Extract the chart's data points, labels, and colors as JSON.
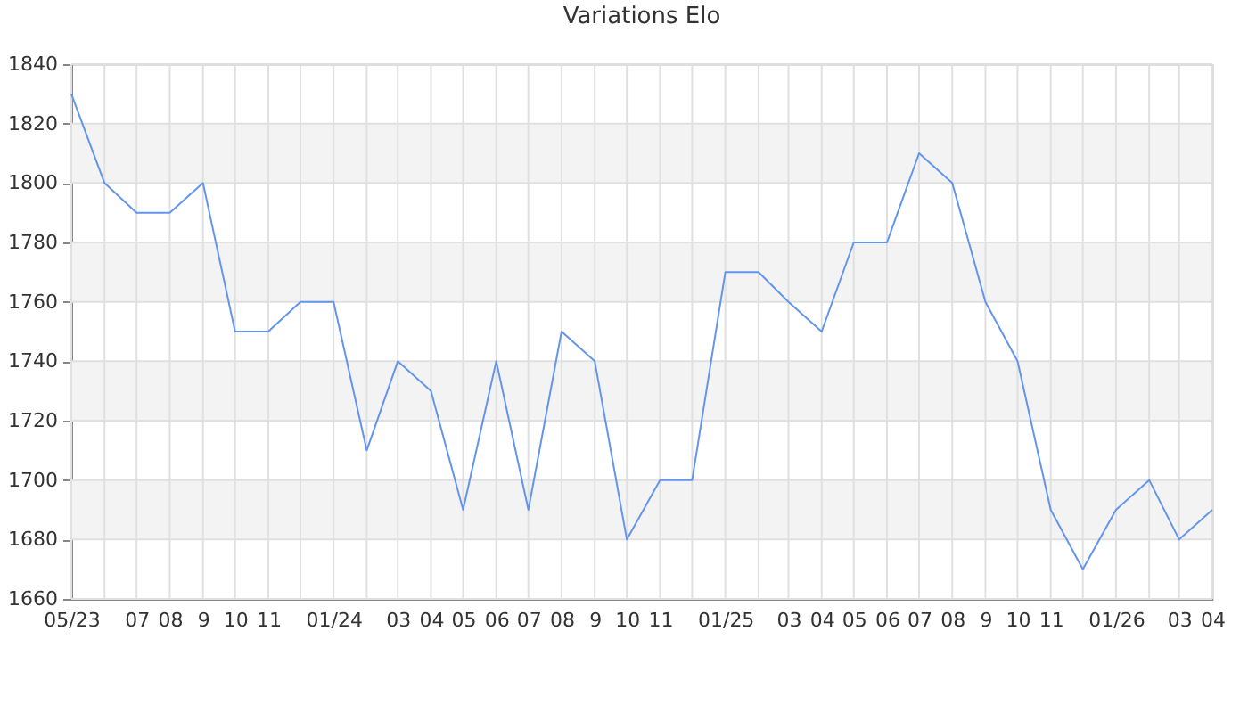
{
  "chart_data": {
    "type": "line",
    "title": "Variations Elo",
    "x": [
      "2023-05",
      "2023-06",
      "2023-07",
      "2023-08",
      "2023-09",
      "2023-10",
      "2023-11",
      "2023-12",
      "2024-01",
      "2024-02",
      "2024-03",
      "2024-04",
      "2024-05",
      "2024-06",
      "2024-07",
      "2024-08",
      "2024-09",
      "2024-10",
      "2024-11",
      "2024-12",
      "2025-01",
      "2025-02",
      "2025-03",
      "2025-04",
      "2025-05",
      "2025-06",
      "2025-07",
      "2025-08",
      "2025-09",
      "2025-10",
      "2025-11",
      "2025-12",
      "2026-01",
      "2026-02",
      "2026-03",
      "2026-04"
    ],
    "series": [
      {
        "color": "#6495ed",
        "values": [
          1830,
          1800,
          1790,
          1790,
          1800,
          1750,
          1750,
          1760,
          1760,
          1710,
          1740,
          1730,
          1690,
          1740,
          1690,
          1750,
          1740,
          1680,
          1700,
          1700,
          1770,
          1770,
          1760,
          1750,
          1780,
          1780,
          1810,
          1800,
          1760,
          1740,
          1690,
          1670,
          1690,
          1700,
          1680,
          1690
        ]
      }
    ],
    "xlim": [
      "2023-05",
      "2026-04"
    ],
    "xticks": [
      {
        "value": "2023-05",
        "label": "05/23"
      },
      {
        "value": "2023-06",
        "label": null
      },
      {
        "value": "2023-07",
        "label": "07"
      },
      {
        "value": "2023-08",
        "label": "08"
      },
      {
        "value": "2023-09",
        "label": "9"
      },
      {
        "value": "2023-10",
        "label": "10"
      },
      {
        "value": "2023-11",
        "label": "11"
      },
      {
        "value": "2023-12",
        "label": null
      },
      {
        "value": "2024-01",
        "label": "01/24"
      },
      {
        "value": "2024-02",
        "label": null
      },
      {
        "value": "2024-03",
        "label": "03"
      },
      {
        "value": "2024-04",
        "label": "04"
      },
      {
        "value": "2024-05",
        "label": "05"
      },
      {
        "value": "2024-06",
        "label": "06"
      },
      {
        "value": "2024-07",
        "label": "07"
      },
      {
        "value": "2024-08",
        "label": "08"
      },
      {
        "value": "2024-09",
        "label": "9"
      },
      {
        "value": "2024-10",
        "label": "10"
      },
      {
        "value": "2024-11",
        "label": "11"
      },
      {
        "value": "2024-12",
        "label": null
      },
      {
        "value": "2025-01",
        "label": "01/25"
      },
      {
        "value": "2025-02",
        "label": null
      },
      {
        "value": "2025-03",
        "label": "03"
      },
      {
        "value": "2025-04",
        "label": "04"
      },
      {
        "value": "2025-05",
        "label": "05"
      },
      {
        "value": "2025-06",
        "label": "06"
      },
      {
        "value": "2025-07",
        "label": "07"
      },
      {
        "value": "2025-08",
        "label": "08"
      },
      {
        "value": "2025-09",
        "label": "9"
      },
      {
        "value": "2025-10",
        "label": "10"
      },
      {
        "value": "2025-11",
        "label": "11"
      },
      {
        "value": "2025-12",
        "label": null
      },
      {
        "value": "2026-01",
        "label": "01/26"
      },
      {
        "value": "2026-02",
        "label": null
      },
      {
        "value": "2026-03",
        "label": "03"
      },
      {
        "value": "2026-04",
        "label": "04"
      }
    ],
    "ylim": [
      1660,
      1840
    ],
    "yticks": [
      1660,
      1680,
      1700,
      1720,
      1740,
      1760,
      1780,
      1800,
      1820,
      1840
    ],
    "bands": [
      {
        "axis": "y",
        "from": 1680,
        "to": 1700,
        "color": "#f3f3f3"
      },
      {
        "axis": "y",
        "from": 1720,
        "to": 1740,
        "color": "#f3f3f3"
      },
      {
        "axis": "y",
        "from": 1760,
        "to": 1780,
        "color": "#f3f3f3"
      },
      {
        "axis": "y",
        "from": 1800,
        "to": 1820,
        "color": "#f3f3f3"
      }
    ],
    "grid": true
  }
}
